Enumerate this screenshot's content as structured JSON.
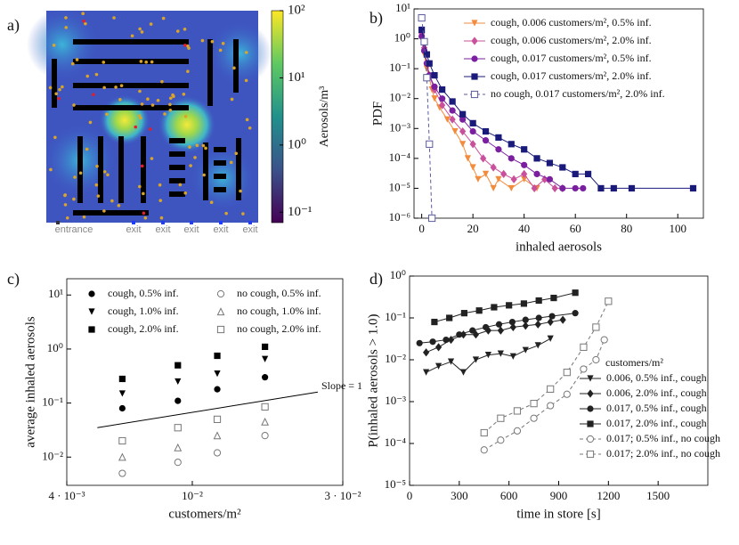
{
  "chart_data": [
    {
      "type": "heatmap",
      "panel_label": "a)",
      "colorbar": {
        "label": "Aerosols/m³",
        "lim": [
          0.07,
          100
        ],
        "scale": "log",
        "ticks": [
          {
            "value": 0.1,
            "label": "10⁻¹"
          },
          {
            "value": 1,
            "label": "10⁰"
          },
          {
            "value": 10,
            "label": "10¹"
          },
          {
            "value": 100,
            "label": "10²"
          }
        ]
      },
      "annotations": [
        "entrance",
        "exit",
        "exit",
        "exit",
        "exit",
        "exit"
      ]
    },
    {
      "type": "line",
      "panel_label": "b)",
      "xlabel": "inhaled aerosols",
      "ylabel": "PDF",
      "xscale": "linear",
      "yscale": "log",
      "xlim": [
        -3,
        110
      ],
      "ylim": [
        1e-06,
        10
      ],
      "xticks": [
        0,
        20,
        40,
        60,
        80,
        100
      ],
      "yticks": [
        {
          "value": 1e-06,
          "label": "10⁻⁶"
        },
        {
          "value": 1e-05,
          "label": "10⁻⁵"
        },
        {
          "value": 0.0001,
          "label": "10⁻⁴"
        },
        {
          "value": 0.001,
          "label": "10⁻³"
        },
        {
          "value": 0.01,
          "label": "10⁻²"
        },
        {
          "value": 0.1,
          "label": "10⁻¹"
        },
        {
          "value": 1,
          "label": "10⁰"
        },
        {
          "value": 10,
          "label": "10¹"
        }
      ],
      "legend": "upper right",
      "series": [
        {
          "name": "cough, 0.006 customers/m², 0.5% inf.",
          "color": "#f28c3c",
          "marker": "triangle-down",
          "dash": false,
          "x": [
            0,
            1,
            2,
            3,
            4,
            5,
            7,
            10,
            13,
            16,
            18,
            20,
            22,
            25,
            28,
            30,
            35,
            40,
            45
          ],
          "values": [
            1,
            0.3,
            0.1,
            0.05,
            0.02,
            0.01,
            0.005,
            0.002,
            0.0008,
            0.0003,
            0.0001,
            5e-05,
            2e-05,
            3e-05,
            1e-05,
            2e-05,
            1e-05,
            2e-05,
            1e-05
          ]
        },
        {
          "name": "cough, 0.006 customers/m², 2.0% inf.",
          "color": "#c9509a",
          "marker": "diamond",
          "dash": false,
          "x": [
            0,
            1,
            2,
            3,
            5,
            8,
            12,
            16,
            20,
            24,
            28,
            32,
            36,
            40,
            44,
            48,
            52,
            55
          ],
          "values": [
            1.5,
            0.5,
            0.15,
            0.06,
            0.02,
            0.006,
            0.002,
            0.0008,
            0.0003,
            0.0001,
            5e-05,
            3e-05,
            2e-05,
            3e-05,
            1e-05,
            2e-05,
            1e-05,
            1e-05
          ]
        },
        {
          "name": "cough, 0.017 customers/m², 0.5% inf.",
          "color": "#7a1fa0",
          "marker": "circle",
          "dash": false,
          "x": [
            0,
            1,
            2,
            3,
            5,
            8,
            12,
            16,
            20,
            25,
            30,
            35,
            40,
            45,
            50,
            55,
            60,
            63
          ],
          "values": [
            1.2,
            0.4,
            0.15,
            0.06,
            0.025,
            0.01,
            0.004,
            0.002,
            0.0008,
            0.0004,
            0.0002,
            0.0001,
            6e-05,
            3e-05,
            2e-05,
            1e-05,
            1e-05,
            1e-05
          ]
        },
        {
          "name": "cough, 0.017 customers/m², 2.0% inf.",
          "color": "#1a1a7a",
          "marker": "square",
          "dash": false,
          "x": [
            0,
            1,
            2,
            3,
            5,
            8,
            12,
            16,
            20,
            25,
            30,
            35,
            40,
            45,
            50,
            55,
            60,
            65,
            70,
            75,
            82,
            106
          ],
          "values": [
            2,
            0.8,
            0.3,
            0.15,
            0.06,
            0.02,
            0.008,
            0.003,
            0.0015,
            0.0008,
            0.0005,
            0.0003,
            0.0002,
            0.0001,
            7e-05,
            5e-05,
            3e-05,
            3e-05,
            1e-05,
            1e-05,
            1e-05,
            1e-05
          ]
        },
        {
          "name": "no cough, 0.017 customers/m², 2.0% inf.",
          "color": "#5b5b9e",
          "marker": "square-open",
          "dash": true,
          "x": [
            0,
            1,
            2,
            3,
            4
          ],
          "values": [
            5,
            0.8,
            0.05,
            0.0003,
            1e-06
          ]
        }
      ]
    },
    {
      "type": "scatter",
      "panel_label": "c)",
      "xlabel": "customers/m²",
      "ylabel": "average inhaled aerosols",
      "xscale": "log",
      "yscale": "log",
      "xlim": [
        0.004,
        0.03
      ],
      "ylim": [
        0.003,
        20
      ],
      "xticks": [
        {
          "value": 0.004,
          "label": "4 · 10⁻³"
        },
        {
          "value": 0.01,
          "label": "10⁻²"
        },
        {
          "value": 0.03,
          "label": "3 · 10⁻²"
        }
      ],
      "yticks": [
        {
          "value": 0.01,
          "label": "10⁻²"
        },
        {
          "value": 0.1,
          "label": "10⁻¹"
        },
        {
          "value": 1,
          "label": "10⁰"
        },
        {
          "value": 10,
          "label": "10¹"
        }
      ],
      "x": [
        0.006,
        0.009,
        0.012,
        0.017
      ],
      "legend": "upper left",
      "series": [
        {
          "name": "cough,  0.5% inf.",
          "color": "#000000",
          "marker": "circle",
          "values": [
            0.08,
            0.11,
            0.18,
            0.3
          ]
        },
        {
          "name": "cough,  1.0% inf.",
          "color": "#000000",
          "marker": "triangle-down",
          "values": [
            0.15,
            0.25,
            0.35,
            0.65
          ]
        },
        {
          "name": "cough,  2.0% inf.",
          "color": "#000000",
          "marker": "square",
          "values": [
            0.28,
            0.5,
            0.75,
            1.1
          ]
        },
        {
          "name": "no cough,  0.5% inf.",
          "color": "#777777",
          "marker": "circle-open",
          "values": [
            0.005,
            0.008,
            0.012,
            0.025
          ]
        },
        {
          "name": "no cough,  1.0% inf.",
          "color": "#777777",
          "marker": "triangle-open",
          "values": [
            0.01,
            0.015,
            0.025,
            0.045
          ]
        },
        {
          "name": "no cough,  2.0% inf.",
          "color": "#777777",
          "marker": "square-open",
          "values": [
            0.02,
            0.035,
            0.05,
            0.085
          ]
        }
      ],
      "reference_line": {
        "label": "Slope = 1",
        "x": [
          0.005,
          0.025
        ],
        "values": [
          0.035,
          0.16
        ]
      }
    },
    {
      "type": "line",
      "panel_label": "d)",
      "xlabel": "time in store [s]",
      "ylabel": "P(inhaled aerosols > 1.0)",
      "xscale": "linear",
      "yscale": "log",
      "xlim": [
        0,
        1800
      ],
      "ylim": [
        1e-05,
        1
      ],
      "xticks": [
        0,
        300,
        600,
        900,
        1200,
        1500
      ],
      "yticks": [
        {
          "value": 1e-05,
          "label": "10⁻⁵"
        },
        {
          "value": 0.0001,
          "label": "10⁻⁴"
        },
        {
          "value": 0.001,
          "label": "10⁻³"
        },
        {
          "value": 0.01,
          "label": "10⁻²"
        },
        {
          "value": 0.1,
          "label": "10⁻¹"
        },
        {
          "value": 1,
          "label": "10⁰"
        }
      ],
      "legend": "lower right",
      "legend_title": "customers/m²",
      "series": [
        {
          "name": "0.006,  0.5% inf.,  cough",
          "color": "#222222",
          "marker": "triangle-down",
          "dash": false,
          "x": [
            100,
            175,
            250,
            325,
            400,
            475,
            550,
            625,
            700,
            775,
            850
          ],
          "values": [
            0.005,
            0.007,
            0.009,
            0.005,
            0.01,
            0.013,
            0.014,
            0.012,
            0.017,
            0.022,
            0.032
          ]
        },
        {
          "name": "0.006,  2.0% inf.,  cough",
          "color": "#222222",
          "marker": "diamond",
          "dash": false,
          "x": [
            100,
            175,
            250,
            325,
            400,
            475,
            550,
            625,
            700,
            775,
            850,
            925
          ],
          "values": [
            0.015,
            0.02,
            0.03,
            0.04,
            0.04,
            0.05,
            0.05,
            0.06,
            0.065,
            0.07,
            0.08,
            0.09
          ]
        },
        {
          "name": "0.017,  0.5% inf.,  cough",
          "color": "#222222",
          "marker": "circle",
          "dash": false,
          "x": [
            60,
            140,
            220,
            300,
            380,
            460,
            540,
            620,
            700,
            780,
            860,
            1000
          ],
          "values": [
            0.025,
            0.027,
            0.03,
            0.04,
            0.05,
            0.06,
            0.07,
            0.08,
            0.09,
            0.1,
            0.11,
            0.13
          ]
        },
        {
          "name": "0.017,  2.0% inf.,  cough",
          "color": "#222222",
          "marker": "square",
          "dash": false,
          "x": [
            150,
            240,
            330,
            420,
            510,
            600,
            690,
            780,
            870,
            1000
          ],
          "values": [
            0.08,
            0.1,
            0.13,
            0.15,
            0.18,
            0.2,
            0.22,
            0.26,
            0.3,
            0.4
          ]
        },
        {
          "name": "0.017;  0.5% inf.,  no cough",
          "color": "#777777",
          "marker": "circle-open",
          "dash": true,
          "x": [
            450,
            550,
            650,
            750,
            850,
            950,
            1050,
            1125,
            1175
          ],
          "values": [
            7e-05,
            0.00012,
            0.0002,
            0.0004,
            0.0008,
            0.0015,
            0.006,
            0.01,
            0.03
          ]
        },
        {
          "name": "0.017;  2.0% inf.,  no cough",
          "color": "#777777",
          "marker": "square-open",
          "dash": true,
          "x": [
            450,
            550,
            650,
            750,
            850,
            950,
            1050,
            1125,
            1200
          ],
          "values": [
            0.00018,
            0.0004,
            0.0006,
            0.0009,
            0.002,
            0.005,
            0.02,
            0.06,
            0.25
          ]
        }
      ]
    }
  ]
}
